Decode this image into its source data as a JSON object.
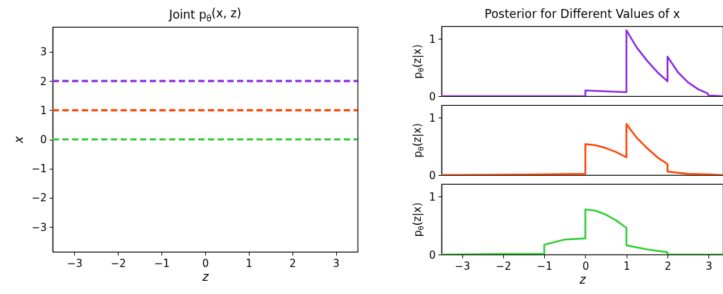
{
  "chart_data": [
    {
      "type": "line",
      "title": "Joint p$_{θ}$(x, z)",
      "xlabel": "z",
      "ylabel": "x",
      "xlim": [
        -3.5,
        3.5
      ],
      "ylim": [
        -3.85,
        3.85
      ],
      "xticks": [
        -3,
        -2,
        -1,
        0,
        1,
        2,
        3
      ],
      "yticks": [
        -3,
        -2,
        -1,
        0,
        1,
        2,
        3
      ],
      "ref_lines": [
        {
          "axis": "y",
          "value": 2,
          "color": "#8a2be2",
          "line_style": "dashed"
        },
        {
          "axis": "y",
          "value": 1,
          "color": "#ff4500",
          "line_style": "dashed"
        },
        {
          "axis": "y",
          "value": 0,
          "color": "#32cd32",
          "line_style": "dashed"
        }
      ]
    },
    {
      "type": "line",
      "title": "Posterior for Different Values of x",
      "ylabel": "p$_{θ}$(z|x)",
      "xlim": [
        -3.5,
        3.35
      ],
      "ylim": [
        0,
        1.22
      ],
      "yticks": [
        0,
        1
      ],
      "tick_labels": "y",
      "grid": false,
      "line_style": "solid",
      "x": [
        -3.5,
        0,
        0,
        1,
        1,
        1.25,
        1.5,
        1.75,
        2,
        2,
        2.25,
        2.5,
        2.75,
        2.97,
        3,
        3.35
      ],
      "series": [
        {
          "color": "#8a2be2",
          "values": [
            0,
            0,
            0.1,
            0.07,
            1.15,
            0.85,
            0.62,
            0.42,
            0.26,
            0.69,
            0.42,
            0.24,
            0.12,
            0.05,
            0.01,
            0
          ]
        }
      ]
    },
    {
      "type": "line",
      "ylabel": "p$_{θ}$(z|x)",
      "xlim": [
        -3.5,
        3.35
      ],
      "ylim": [
        0,
        1.22
      ],
      "yticks": [
        0,
        1
      ],
      "tick_labels": "y",
      "grid": false,
      "line_style": "solid",
      "x": [
        -3.5,
        -1,
        0,
        0,
        0.25,
        0.5,
        0.75,
        1,
        1,
        1.25,
        1.5,
        1.75,
        2,
        2,
        2.5,
        3,
        3.35
      ],
      "series": [
        {
          "color": "#ff4500",
          "values": [
            0,
            0.01,
            0.02,
            0.54,
            0.52,
            0.47,
            0.4,
            0.31,
            0.89,
            0.65,
            0.47,
            0.31,
            0.19,
            0.06,
            0.02,
            0.01,
            0
          ]
        }
      ]
    },
    {
      "type": "line",
      "xlabel": "z",
      "ylabel": "p$_{θ}$(z|x)",
      "xlim": [
        -3.5,
        3.35
      ],
      "ylim": [
        0,
        1.22
      ],
      "xticks": [
        -3,
        -2,
        -1,
        0,
        1,
        2,
        3
      ],
      "yticks": [
        0,
        1
      ],
      "grid": false,
      "line_style": "solid",
      "x": [
        -3.5,
        -2,
        -1,
        -1,
        -0.5,
        0,
        0,
        0.25,
        0.5,
        0.75,
        1,
        1,
        1.5,
        2,
        2,
        3.35
      ],
      "series": [
        {
          "color": "#32cd32",
          "values": [
            0,
            0.01,
            0.01,
            0.17,
            0.26,
            0.28,
            0.78,
            0.76,
            0.69,
            0.59,
            0.46,
            0.16,
            0.09,
            0.04,
            0,
            0
          ]
        }
      ]
    }
  ]
}
